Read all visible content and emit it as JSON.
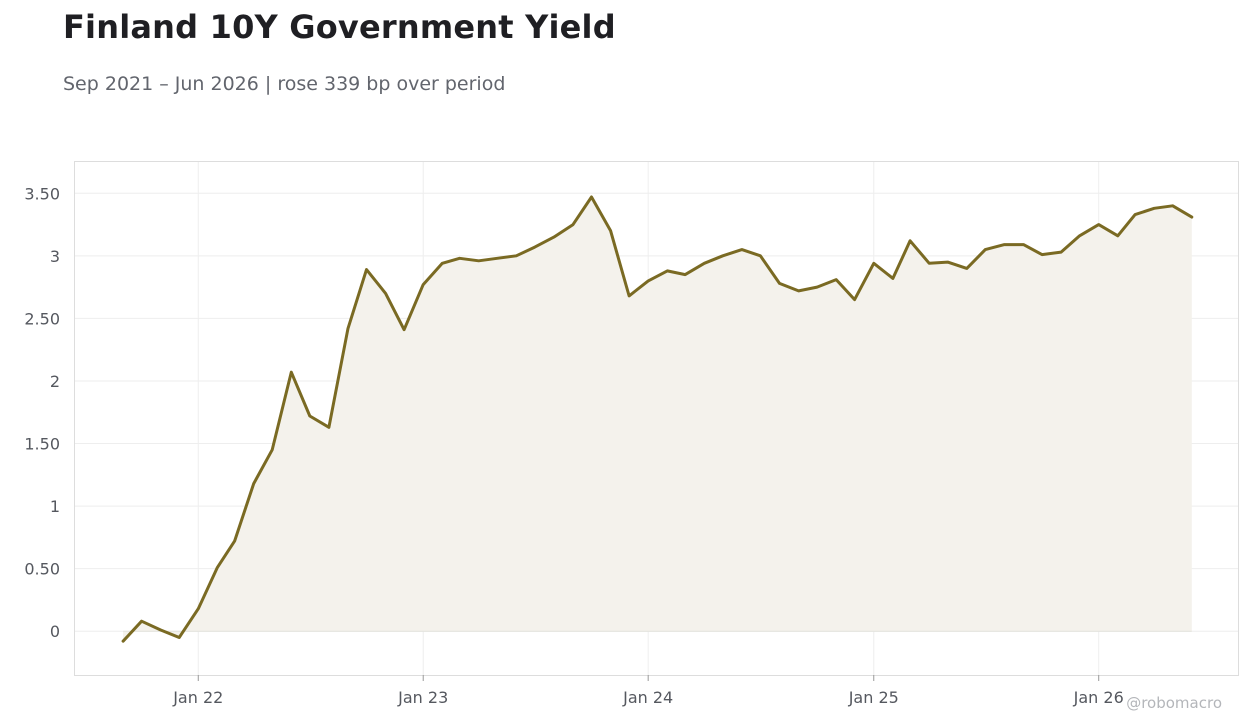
{
  "header": {
    "title": "Finland 10Y Government Yield",
    "subtitle": "Sep 2021 – Jun 2026 | rose 339 bp over period"
  },
  "watermark": "@robomacro",
  "colors": {
    "line": "#7a6a23",
    "area_fill": "#f4f2ec",
    "grid": "#eeeeee",
    "frame": "#dddddd",
    "tick_text": "#55585f"
  },
  "chart_data": {
    "type": "area",
    "grid": true,
    "ylim": [
      -0.35,
      3.75
    ],
    "xlim": [
      "2021-06-15",
      "2026-08-15"
    ],
    "y_ticks": [
      {
        "value": 0,
        "label": "0"
      },
      {
        "value": 0.5,
        "label": "0.50"
      },
      {
        "value": 1,
        "label": "1"
      },
      {
        "value": 1.5,
        "label": "1.50"
      },
      {
        "value": 2,
        "label": "2"
      },
      {
        "value": 2.5,
        "label": "2.50"
      },
      {
        "value": 3,
        "label": "3"
      },
      {
        "value": 3.5,
        "label": "3.50"
      }
    ],
    "x_ticks": [
      {
        "date": "2022-01-01",
        "label": "Jan 22"
      },
      {
        "date": "2023-01-01",
        "label": "Jan 23"
      },
      {
        "date": "2024-01-01",
        "label": "Jan 24"
      },
      {
        "date": "2025-01-01",
        "label": "Jan 25"
      },
      {
        "date": "2026-01-01",
        "label": "Jan 26"
      }
    ],
    "series": [
      {
        "points": [
          [
            "2021-09-01",
            -0.08
          ],
          [
            "2021-10-01",
            0.08
          ],
          [
            "2021-11-01",
            0.01
          ],
          [
            "2021-12-01",
            -0.05
          ],
          [
            "2022-01-01",
            0.18
          ],
          [
            "2022-02-01",
            0.51
          ],
          [
            "2022-03-01",
            0.72
          ],
          [
            "2022-04-01",
            1.18
          ],
          [
            "2022-05-01",
            1.45
          ],
          [
            "2022-06-01",
            2.07
          ],
          [
            "2022-07-01",
            1.72
          ],
          [
            "2022-08-01",
            1.63
          ],
          [
            "2022-09-01",
            2.42
          ],
          [
            "2022-10-01",
            2.89
          ],
          [
            "2022-11-01",
            2.7
          ],
          [
            "2022-12-01",
            2.41
          ],
          [
            "2023-01-01",
            2.77
          ],
          [
            "2023-02-01",
            2.94
          ],
          [
            "2023-03-01",
            2.98
          ],
          [
            "2023-04-01",
            2.96
          ],
          [
            "2023-05-01",
            2.98
          ],
          [
            "2023-06-01",
            3.0
          ],
          [
            "2023-07-01",
            3.07
          ],
          [
            "2023-08-01",
            3.15
          ],
          [
            "2023-09-01",
            3.25
          ],
          [
            "2023-10-01",
            3.47
          ],
          [
            "2023-11-01",
            3.2
          ],
          [
            "2023-12-01",
            2.68
          ],
          [
            "2024-01-01",
            2.8
          ],
          [
            "2024-02-01",
            2.88
          ],
          [
            "2024-03-01",
            2.85
          ],
          [
            "2024-04-01",
            2.94
          ],
          [
            "2024-05-01",
            3.0
          ],
          [
            "2024-06-01",
            3.05
          ],
          [
            "2024-07-01",
            3.0
          ],
          [
            "2024-08-01",
            2.78
          ],
          [
            "2024-09-01",
            2.72
          ],
          [
            "2024-10-01",
            2.75
          ],
          [
            "2024-11-01",
            2.81
          ],
          [
            "2024-12-01",
            2.65
          ],
          [
            "2025-01-01",
            2.94
          ],
          [
            "2025-02-01",
            2.82
          ],
          [
            "2025-03-01",
            3.12
          ],
          [
            "2025-04-01",
            2.94
          ],
          [
            "2025-05-01",
            2.95
          ],
          [
            "2025-06-01",
            2.9
          ],
          [
            "2025-07-01",
            3.05
          ],
          [
            "2025-08-01",
            3.09
          ],
          [
            "2025-09-01",
            3.09
          ],
          [
            "2025-10-01",
            3.01
          ],
          [
            "2025-11-01",
            3.03
          ],
          [
            "2025-12-01",
            3.16
          ],
          [
            "2026-01-01",
            3.25
          ],
          [
            "2026-02-01",
            3.16
          ],
          [
            "2026-03-01",
            3.33
          ],
          [
            "2026-04-01",
            3.38
          ],
          [
            "2026-05-01",
            3.4
          ],
          [
            "2026-06-01",
            3.31
          ]
        ]
      }
    ]
  }
}
